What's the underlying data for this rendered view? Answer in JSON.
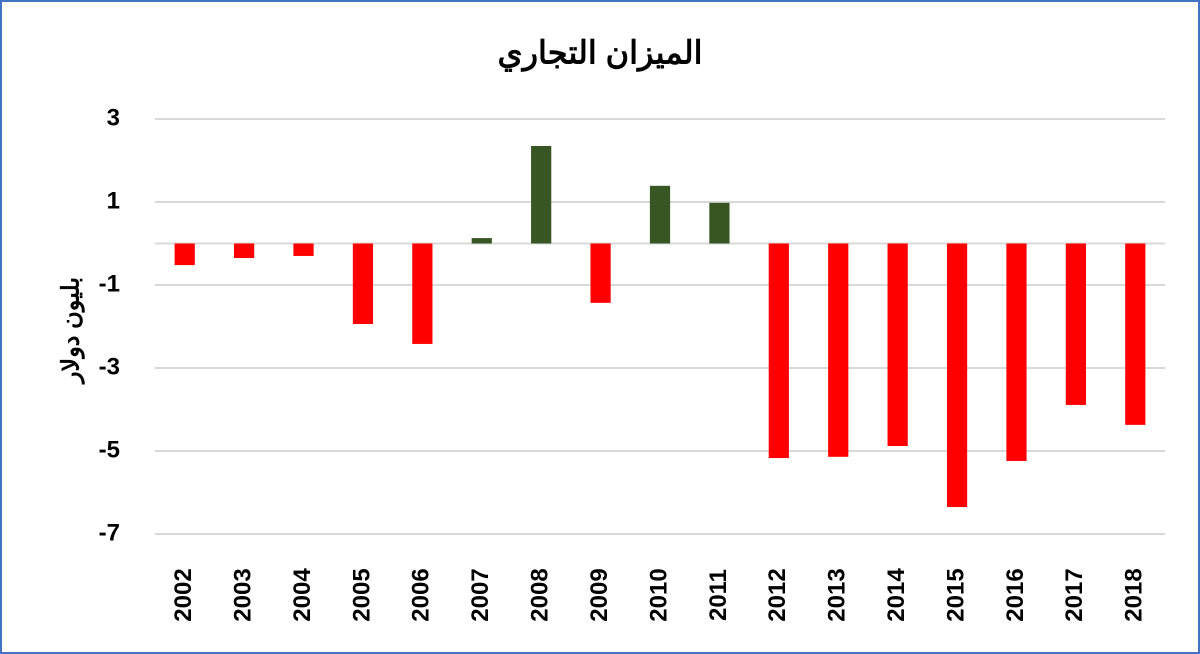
{
  "chart_data": {
    "type": "bar",
    "title": "الميزان التجاري",
    "y_label": "بليون دولار",
    "categories": [
      "2002",
      "2003",
      "2004",
      "2005",
      "2006",
      "2007",
      "2008",
      "2009",
      "2010",
      "2011",
      "2012",
      "2013",
      "2014",
      "2015",
      "2016",
      "2017",
      "2018"
    ],
    "values": [
      -0.52,
      -0.35,
      -0.3,
      -1.94,
      -2.42,
      0.13,
      2.35,
      -1.43,
      1.39,
      0.98,
      -5.17,
      -5.14,
      -4.88,
      -6.35,
      -5.24,
      -3.89,
      -4.37
    ],
    "positive_color": "#375623",
    "negative_color": "#ff0000",
    "ylim": [
      -7,
      3
    ],
    "yticks": [
      -7,
      -5,
      -3,
      -1,
      1,
      3
    ],
    "grid": true
  }
}
